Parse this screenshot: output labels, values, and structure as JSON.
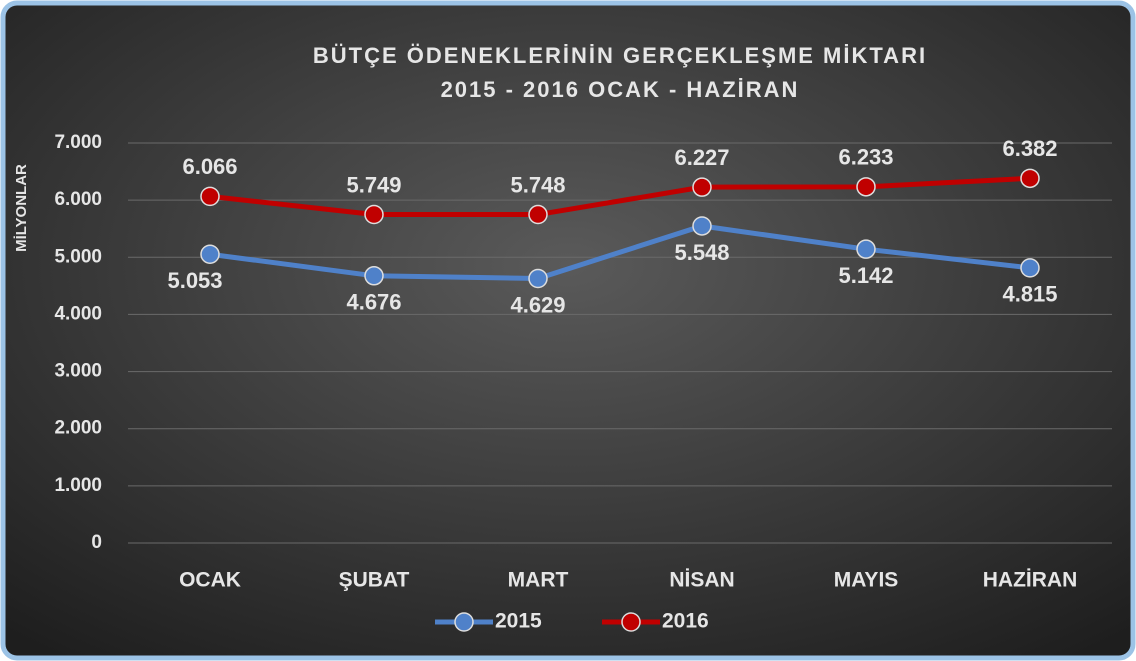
{
  "chart_data": {
    "type": "line",
    "title": "BÜTÇE ÖDENEKLERİNİN GERÇEKLEŞME MİKTARI",
    "subtitle": "2015 - 2016 OCAK - HAZİRAN",
    "y_label": "MİLYONLAR",
    "categories": [
      "OCAK",
      "ŞUBAT",
      "MART",
      "NİSAN",
      "MAYIS",
      "HAZİRAN"
    ],
    "series": [
      {
        "name": "2015",
        "color": "#4f81c9",
        "values": [
          5053,
          4676,
          4629,
          5548,
          5142,
          4815
        ],
        "value_labels": [
          "5.053",
          "4.676",
          "4.629",
          "5.548",
          "5.142",
          "4.815"
        ]
      },
      {
        "name": "2016",
        "color": "#c00000",
        "values": [
          6066,
          5749,
          5748,
          6227,
          6233,
          6382
        ],
        "value_labels": [
          "6.066",
          "5.749",
          "5.748",
          "6.227",
          "6.233",
          "6.382"
        ]
      }
    ],
    "ylim": [
      0,
      7000
    ],
    "yticks": [
      0,
      {
        "value": 1000,
        "label": "1.000"
      },
      {
        "value": 2000,
        "label": "2.000"
      },
      {
        "value": 3000,
        "label": "3.000"
      },
      {
        "value": 4000,
        "label": "4.000"
      },
      {
        "value": 5000,
        "label": "5.000"
      },
      {
        "value": 6000,
        "label": "6.000"
      },
      {
        "value": 7000,
        "label": "7.000"
      }
    ],
    "grid": true,
    "legend": "bottom"
  }
}
